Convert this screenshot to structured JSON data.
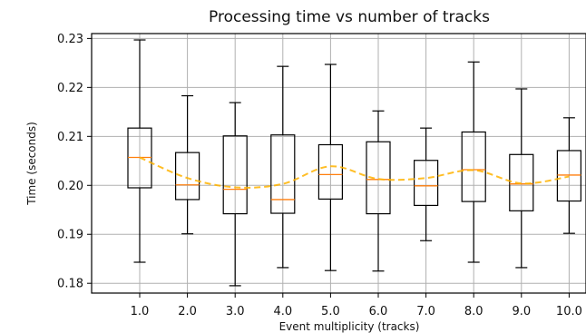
{
  "chart_data": {
    "type": "box",
    "title": "Processing time vs number of tracks",
    "xlabel": "Event multiplicity (tracks)",
    "ylabel": "Time (seconds)",
    "categories": [
      "1.0",
      "2.0",
      "3.0",
      "4.0",
      "5.0",
      "6.0",
      "7.0",
      "8.0",
      "9.0",
      "10.0"
    ],
    "ylim": [
      0.178,
      0.231
    ],
    "y_ticks": [
      0.18,
      0.19,
      0.2,
      0.21,
      0.22,
      0.23
    ],
    "y_tick_labels": [
      "0.18",
      "0.19",
      "0.20",
      "0.21",
      "0.22",
      "0.23"
    ],
    "grid": true,
    "series": [
      {
        "boxes": [
          {
            "whisker_low": 0.1843,
            "q1": 0.1995,
            "median": 0.2057,
            "q3": 0.2117,
            "whisker_high": 0.2297
          },
          {
            "whisker_low": 0.1901,
            "q1": 0.1971,
            "median": 0.2001,
            "q3": 0.2067,
            "whisker_high": 0.2183
          },
          {
            "whisker_low": 0.1795,
            "q1": 0.1942,
            "median": 0.1992,
            "q3": 0.2101,
            "whisker_high": 0.2169
          },
          {
            "whisker_low": 0.1832,
            "q1": 0.1943,
            "median": 0.1971,
            "q3": 0.2103,
            "whisker_high": 0.2243
          },
          {
            "whisker_low": 0.1826,
            "q1": 0.1972,
            "median": 0.2022,
            "q3": 0.2083,
            "whisker_high": 0.2247
          },
          {
            "whisker_low": 0.1825,
            "q1": 0.1942,
            "median": 0.2012,
            "q3": 0.2089,
            "whisker_high": 0.2152
          },
          {
            "whisker_low": 0.1887,
            "q1": 0.1959,
            "median": 0.1999,
            "q3": 0.2051,
            "whisker_high": 0.2117
          },
          {
            "whisker_low": 0.1843,
            "q1": 0.1967,
            "median": 0.2032,
            "q3": 0.2109,
            "whisker_high": 0.2252
          },
          {
            "whisker_low": 0.1832,
            "q1": 0.1948,
            "median": 0.2003,
            "q3": 0.2063,
            "whisker_high": 0.2197
          },
          {
            "whisker_low": 0.1902,
            "q1": 0.1968,
            "median": 0.2021,
            "q3": 0.2071,
            "whisker_high": 0.2138
          }
        ]
      },
      {
        "style": "dashed",
        "values": [
          0.2057,
          0.2015,
          0.1996,
          0.2003,
          0.2039,
          0.2013,
          0.2015,
          0.2031,
          0.2004,
          0.2018
        ]
      }
    ],
    "colors": {
      "median": "#ff7f0e",
      "mean_line": "#ffb300",
      "box": "#000000",
      "grid": "#b0b0b0"
    }
  }
}
